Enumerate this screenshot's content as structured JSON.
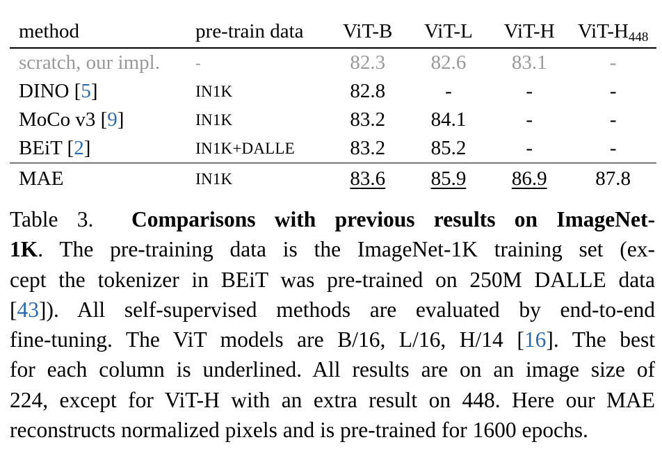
{
  "table": {
    "headers": {
      "method": "method",
      "data": "pre-train data",
      "vitb": "ViT-B",
      "vitl": "ViT-L",
      "vith": "ViT-H",
      "vith448_main": "ViT-H",
      "vith448_sub": "448"
    },
    "rows": [
      {
        "method": "scratch, our impl.",
        "cite": "",
        "data": "-",
        "vitb": "82.3",
        "vitl": "82.6",
        "vith": "83.1",
        "vith448": "-"
      },
      {
        "method": "DINO [",
        "cite": "5",
        "close": "]",
        "data": "IN1K",
        "vitb": "82.8",
        "vitl": "-",
        "vith": "-",
        "vith448": "-"
      },
      {
        "method": "MoCo v3 [",
        "cite": "9",
        "close": "]",
        "data": "IN1K",
        "vitb": "83.2",
        "vitl": "84.1",
        "vith": "-",
        "vith448": "-"
      },
      {
        "method": "BEiT [",
        "cite": "2",
        "close": "]",
        "data": "IN1K+DALLE",
        "vitb": "83.2",
        "vitl": "85.2",
        "vith": "-",
        "vith448": "-"
      },
      {
        "method": "MAE",
        "data": "IN1K",
        "vitb": "83.6",
        "vitl": "85.9",
        "vith": "86.9",
        "vith448": "87.8"
      }
    ]
  },
  "caption": {
    "label": "Table 3.",
    "title_line1": "Comparisons with previous results on ImageNet-",
    "title_line2": "1K",
    "l2_rest": ". The pre-training data is the ImageNet-1K training set (ex-",
    "l3": "cept the tokenizer in BEiT was pre-trained on 250M DALLE data",
    "l4_open": "[",
    "l4_cite": "43",
    "l4_rest": "]).  All self-supervised methods are evaluated by end-to-end",
    "l5_a": "fine-tuning. The ViT models are B/16, L/16, H/14 [",
    "l5_cite": "16",
    "l5_b": "]. The best",
    "l6": "for each column is underlined. All results are on an image size of",
    "l7": "224, except for ViT-H with an extra result on 448. Here our MAE",
    "l8": "reconstructs normalized pixels and is pre-trained for 1600 epochs."
  },
  "colors": {
    "text": "#000000",
    "grey": "#999999",
    "citation": "#2a6bb3"
  }
}
